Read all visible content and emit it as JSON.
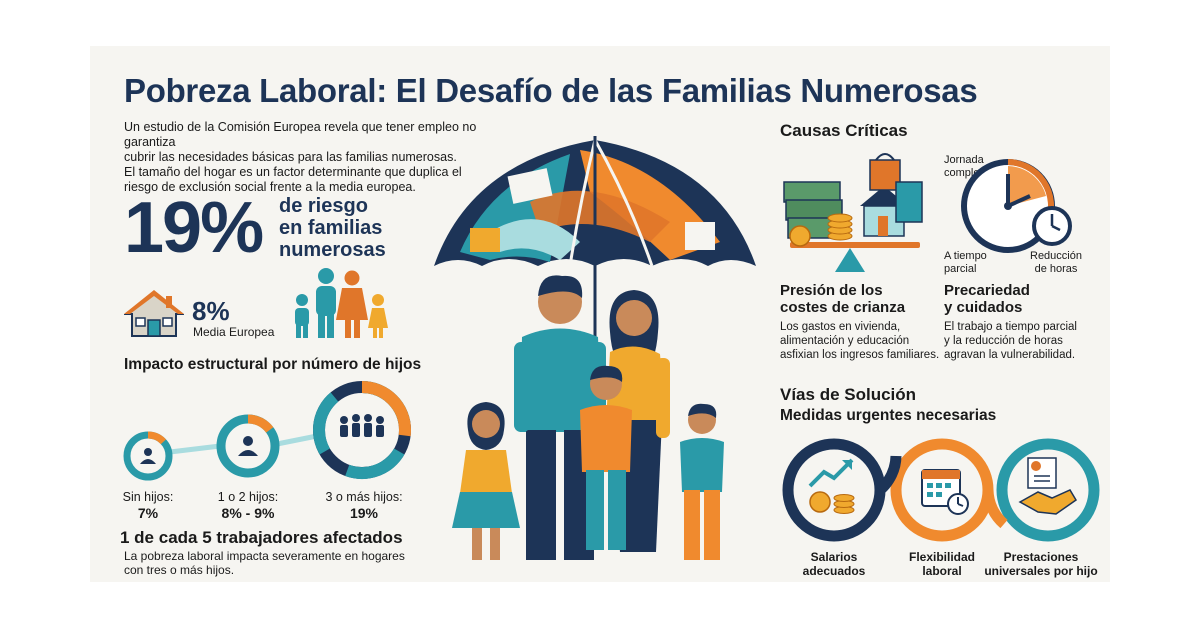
{
  "header": {
    "title": "Pobreza Laboral: El Desafío de las Familias Numerosas"
  },
  "intro": {
    "line1": "Un estudio de la Comisión Europea revela que tener empleo no garantiza",
    "line2": "cubrir las necesidades básicas para las familias numerosas.",
    "line3": "El tamaño del hogar es un factor determinante que duplica el",
    "line4": "riesgo de exclusión social frente a la media europea."
  },
  "stat_main": {
    "value": "19%",
    "label_line1": "de riesgo",
    "label_line2": "en familias",
    "label_line3": "numerosas"
  },
  "stat_eu": {
    "value": "8%",
    "label": "Media Europea"
  },
  "impact": {
    "heading": "Impacto estructural por número de hijos",
    "groups": [
      {
        "label": "Sin hijos:",
        "value": "7%",
        "percent": 7
      },
      {
        "label": "1 o 2 hijos:",
        "value": "8% - 9%",
        "percent": 8.5
      },
      {
        "label": "3 o más hijos:",
        "value": "19%",
        "percent": 19
      }
    ]
  },
  "workers": {
    "heading": "1 de cada 5 trabajadores afectados",
    "text_line1": "La pobreza laboral impacta severamente en hogares",
    "text_line2": "con tres o más hijos."
  },
  "causes": {
    "heading": "Causas Críticas",
    "clock_labels": {
      "top": "Jornada completa",
      "top1": "Jornada",
      "top2": "completa",
      "left1": "A tiempo",
      "left2": "parcial",
      "right1": "Reducción",
      "right2": "de horas"
    },
    "items": [
      {
        "title_line1": "Presión de los",
        "title_line2": "costes de crianza",
        "text_line1": "Los gastos en vivienda,",
        "text_line2": "alimentación y educación",
        "text_line3": "asfixian los ingresos familiares."
      },
      {
        "title_line1": "Precariedad",
        "title_line2": "y cuidados",
        "text_line1": "El trabajo a tiempo parcial",
        "text_line2": "y la reducción de horas",
        "text_line3": "agravan la vulnerabilidad."
      }
    ]
  },
  "solutions": {
    "heading": "Vías de Solución",
    "subheading": "Medidas urgentes necesarias",
    "items": [
      {
        "line1": "Salarios",
        "line2": "adecuados"
      },
      {
        "line1": "Flexibilidad",
        "line2": "laboral"
      },
      {
        "line1": "Prestaciones",
        "line2": "universales por hijo"
      }
    ]
  },
  "colors": {
    "navy": "#1d3457",
    "teal": "#2a9aa8",
    "orange": "#f08a2e",
    "light_teal": "#a9dcdf"
  }
}
